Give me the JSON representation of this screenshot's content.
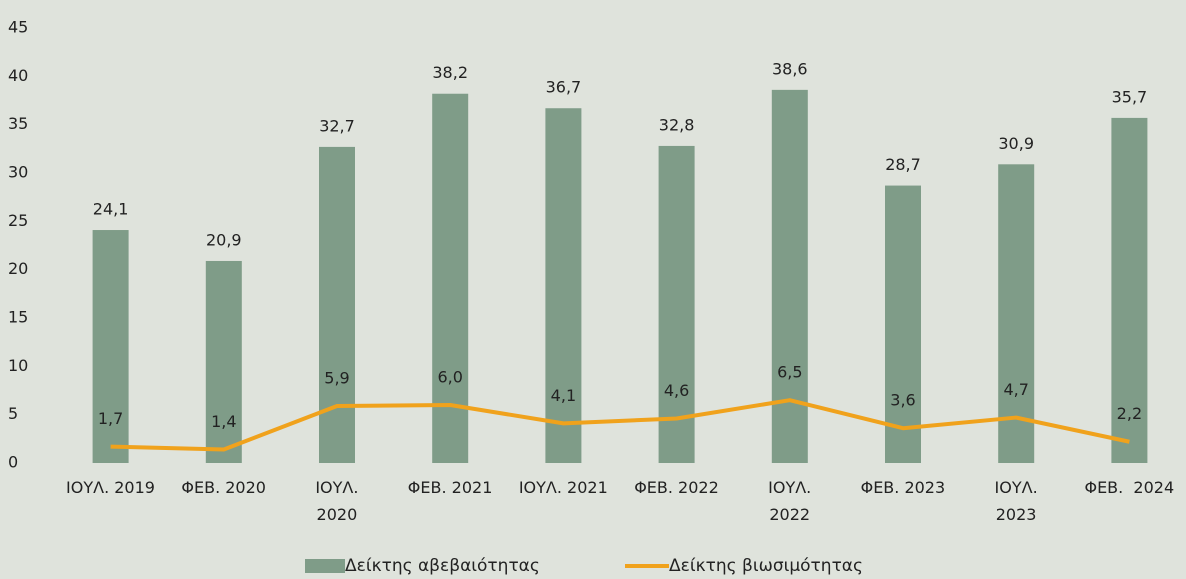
{
  "chart_data": {
    "type": "bar_line",
    "categories": [
      "ΙΟΥΛ. 2019",
      "ΦΕΒ. 2020",
      "ΙΟΥΛ.\n2020",
      "ΦΕΒ. 2021",
      "ΙΟΥΛ. 2021",
      "ΦΕΒ. 2022",
      "ΙΟΥΛ.\n2022",
      "ΦΕΒ. 2023",
      "ΙΟΥΛ.\n2023",
      "ΦΕΒ.  2024"
    ],
    "series": [
      {
        "name": "Δείκτης αβεβαιότητας",
        "type": "bar",
        "color": "#7f9c88",
        "values": [
          24.1,
          20.9,
          32.7,
          38.2,
          36.7,
          32.8,
          38.6,
          28.7,
          30.9,
          35.7
        ],
        "value_labels": [
          "24,1",
          "20,9",
          "32,7",
          "38,2",
          "36,7",
          "32,8",
          "38,6",
          "28,7",
          "30,9",
          "35,7"
        ]
      },
      {
        "name": "Δείκτης βιωσιμότητας",
        "type": "line",
        "color": "#f0a21c",
        "values": [
          1.7,
          1.4,
          5.9,
          6.0,
          4.1,
          4.6,
          6.5,
          3.6,
          4.7,
          2.2
        ],
        "value_labels": [
          "1,7",
          "1,4",
          "5,9",
          "6,0",
          "4,1",
          "4,6",
          "6,5",
          "3,6",
          "4,7",
          "2,2"
        ]
      }
    ],
    "ylim": [
      0,
      45
    ],
    "yticks": [
      0,
      5,
      10,
      15,
      20,
      25,
      30,
      35,
      40,
      45
    ],
    "legend": "bottom"
  }
}
